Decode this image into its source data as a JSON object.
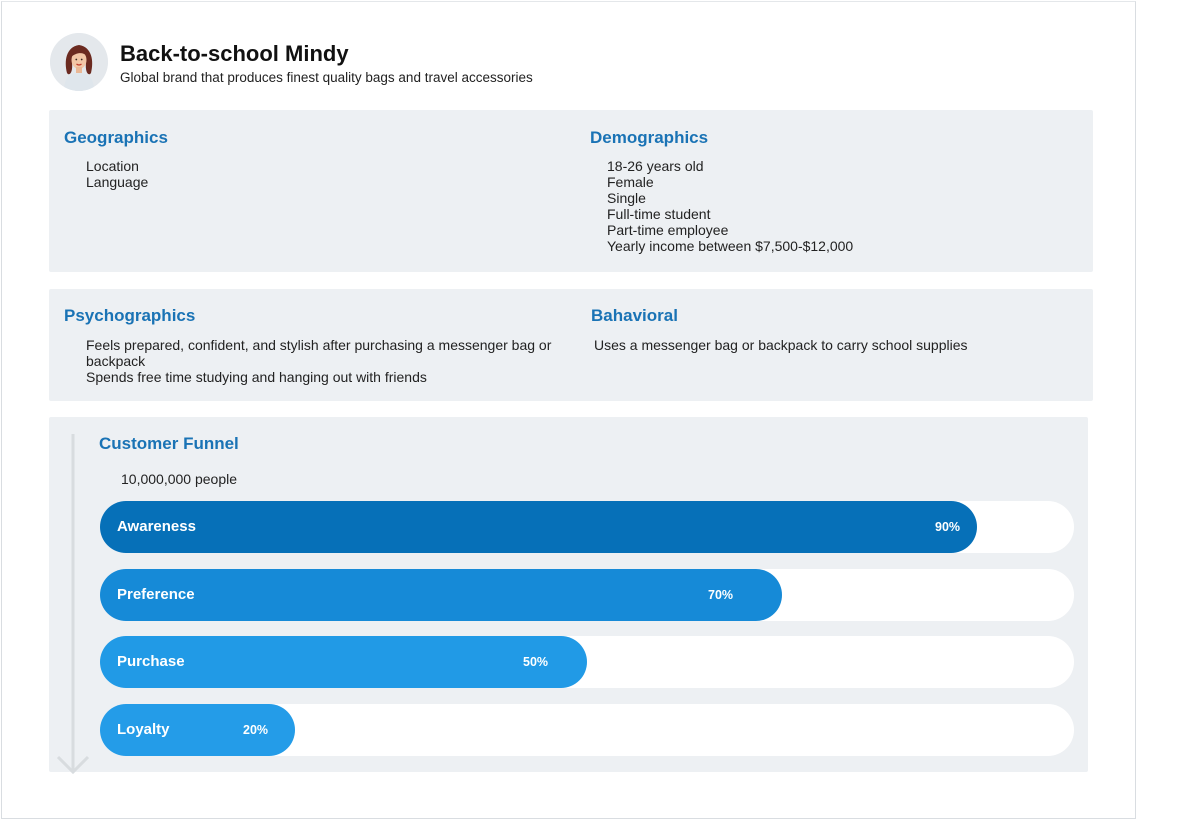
{
  "persona": {
    "name": "Back-to-school Mindy",
    "description": "Global brand that produces finest quality bags and travel accessories"
  },
  "geographics": {
    "title": "Geographics",
    "items": [
      "Location",
      "Language"
    ]
  },
  "demographics": {
    "title": "Demographics",
    "items": [
      "18-26 years old",
      "Female",
      "Single",
      "Full-time student",
      "Part-time employee",
      "Yearly income between $7,500-$12,000"
    ]
  },
  "psychographics": {
    "title": "Psychographics",
    "items": [
      "Feels prepared, confident, and stylish after purchasing a messenger bag or backpack",
      "Spends free time studying and hanging out with friends"
    ]
  },
  "behavioral": {
    "title": "Bahavioral",
    "items": [
      "Uses a messenger bag or backpack to carry school supplies"
    ]
  },
  "funnel": {
    "title": "Customer Funnel",
    "people": "10,000,000 people",
    "stages": [
      {
        "label": "Awareness",
        "percent_label": "90%",
        "value": 90,
        "color": "#0670b8"
      },
      {
        "label": "Preference",
        "percent_label": "70%",
        "value": 70,
        "color": "#168ad7"
      },
      {
        "label": "Purchase",
        "percent_label": "50%",
        "value": 50,
        "color": "#219ae6"
      },
      {
        "label": "Loyalty",
        "percent_label": "20%",
        "value": 20,
        "color": "#249ce8"
      }
    ]
  }
}
